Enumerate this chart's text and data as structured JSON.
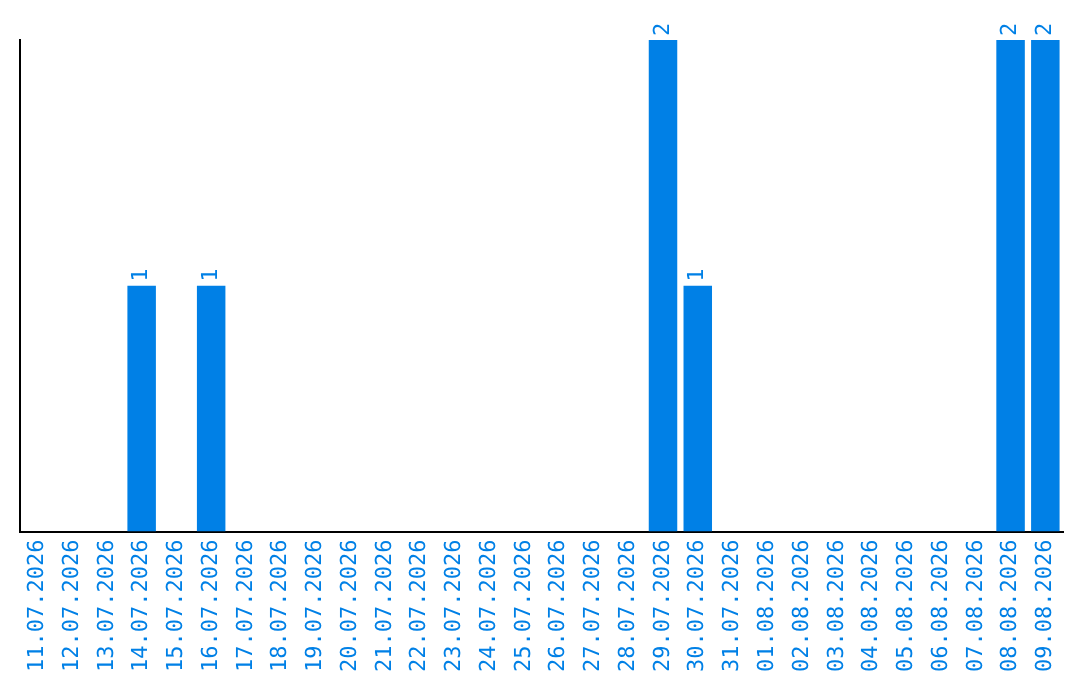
{
  "chart_data": {
    "type": "bar",
    "categories": [
      "11.07.2026",
      "12.07.2026",
      "13.07.2026",
      "14.07.2026",
      "15.07.2026",
      "16.07.2026",
      "17.07.2026",
      "18.07.2026",
      "19.07.2026",
      "20.07.2026",
      "21.07.2026",
      "22.07.2026",
      "23.07.2026",
      "24.07.2026",
      "25.07.2026",
      "26.07.2026",
      "27.07.2026",
      "28.07.2026",
      "29.07.2026",
      "30.07.2026",
      "31.07.2026",
      "01.08.2026",
      "02.08.2026",
      "03.08.2026",
      "04.08.2026",
      "05.08.2026",
      "06.08.2026",
      "07.08.2026",
      "08.08.2026",
      "09.08.2026"
    ],
    "values": [
      0,
      0,
      0,
      1,
      0,
      1,
      0,
      0,
      0,
      0,
      0,
      0,
      0,
      0,
      0,
      0,
      0,
      0,
      2,
      1,
      0,
      0,
      0,
      0,
      0,
      0,
      0,
      0,
      2,
      2
    ],
    "value_labels": [
      null,
      null,
      null,
      "1",
      null,
      "1",
      null,
      null,
      null,
      null,
      null,
      null,
      null,
      null,
      null,
      null,
      null,
      null,
      "2",
      "1",
      null,
      null,
      null,
      null,
      null,
      null,
      null,
      null,
      "2",
      "2"
    ],
    "color": "#0080e6",
    "ylim": [
      0,
      2
    ],
    "tick_labels": "x",
    "grid": false,
    "legend": false
  }
}
